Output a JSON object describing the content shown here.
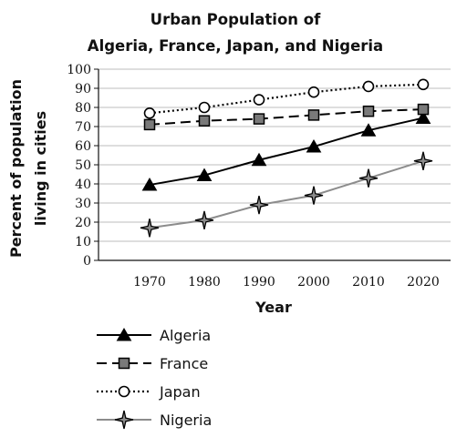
{
  "chart_data": {
    "type": "line",
    "title_line1": "Urban Population of",
    "title_line2": "Algeria, France, Japan, and Nigeria",
    "xlabel": "Year",
    "ylabel_line1": "Percent of population",
    "ylabel_line2": "living in cities",
    "x": [
      1970,
      1980,
      1990,
      2000,
      2010,
      2020
    ],
    "x_ticks": [
      "1970",
      "1980",
      "1990",
      "2000",
      "2010",
      "2020"
    ],
    "y_ticks": [
      "0",
      "10",
      "20",
      "30",
      "40",
      "50",
      "60",
      "70",
      "80",
      "90",
      "100"
    ],
    "ylim": [
      0,
      100
    ],
    "grid": "horizontal",
    "legend_position": "bottom",
    "series": [
      {
        "name": "Algeria",
        "values": [
          39.5,
          44.5,
          52.5,
          59.5,
          68,
          74.5
        ],
        "color": "#000000",
        "dash": "solid",
        "marker": "triangle"
      },
      {
        "name": "France",
        "values": [
          71,
          73,
          74,
          76,
          78,
          79
        ],
        "color": "#000000",
        "dash": "dashed",
        "marker": "square"
      },
      {
        "name": "Japan",
        "values": [
          77,
          80,
          84,
          88,
          91,
          92
        ],
        "color": "#000000",
        "dash": "dotted",
        "marker": "circle"
      },
      {
        "name": "Nigeria",
        "values": [
          17,
          21,
          29,
          34,
          43,
          52
        ],
        "color": "#8c8c8c",
        "dash": "solid",
        "marker": "star"
      }
    ]
  }
}
